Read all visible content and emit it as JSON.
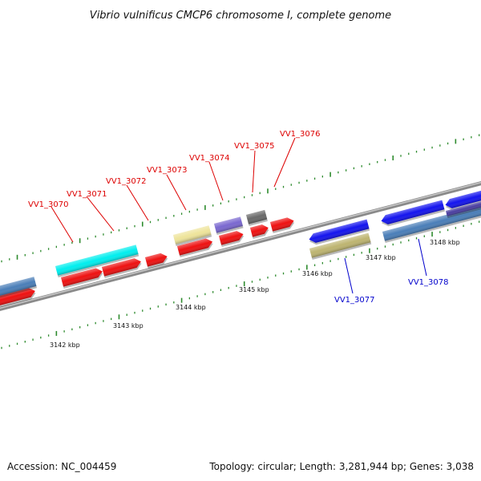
{
  "title": "Vibrio vulnificus CMCP6 chromosome I, complete genome",
  "footer": {
    "accession": "Accession: NC_004459",
    "topology": "Topology: circular; Length: 3,281,944 bp; Genes: 3,038"
  },
  "colors": {
    "forward_label": "#dd0000",
    "reverse_label": "#0000cc",
    "tick_mark": "#2e8b2e",
    "backbone": "#8a8a8a"
  },
  "ticks": [
    "3142 kbp",
    "3143 kbp",
    "3144 kbp",
    "3145 kbp",
    "3146 kbp",
    "3147 kbp",
    "3148 kbp"
  ],
  "gene_labels": [
    {
      "text": "VV1_3070",
      "strand": "forward"
    },
    {
      "text": "VV1_3071",
      "strand": "forward"
    },
    {
      "text": "VV1_3072",
      "strand": "forward"
    },
    {
      "text": "VV1_3073",
      "strand": "forward"
    },
    {
      "text": "VV1_3074",
      "strand": "forward"
    },
    {
      "text": "VV1_3075",
      "strand": "forward"
    },
    {
      "text": "VV1_3076",
      "strand": "forward"
    },
    {
      "text": "VV1_3077",
      "strand": "reverse"
    },
    {
      "text": "VV1_3078",
      "strand": "reverse"
    }
  ]
}
